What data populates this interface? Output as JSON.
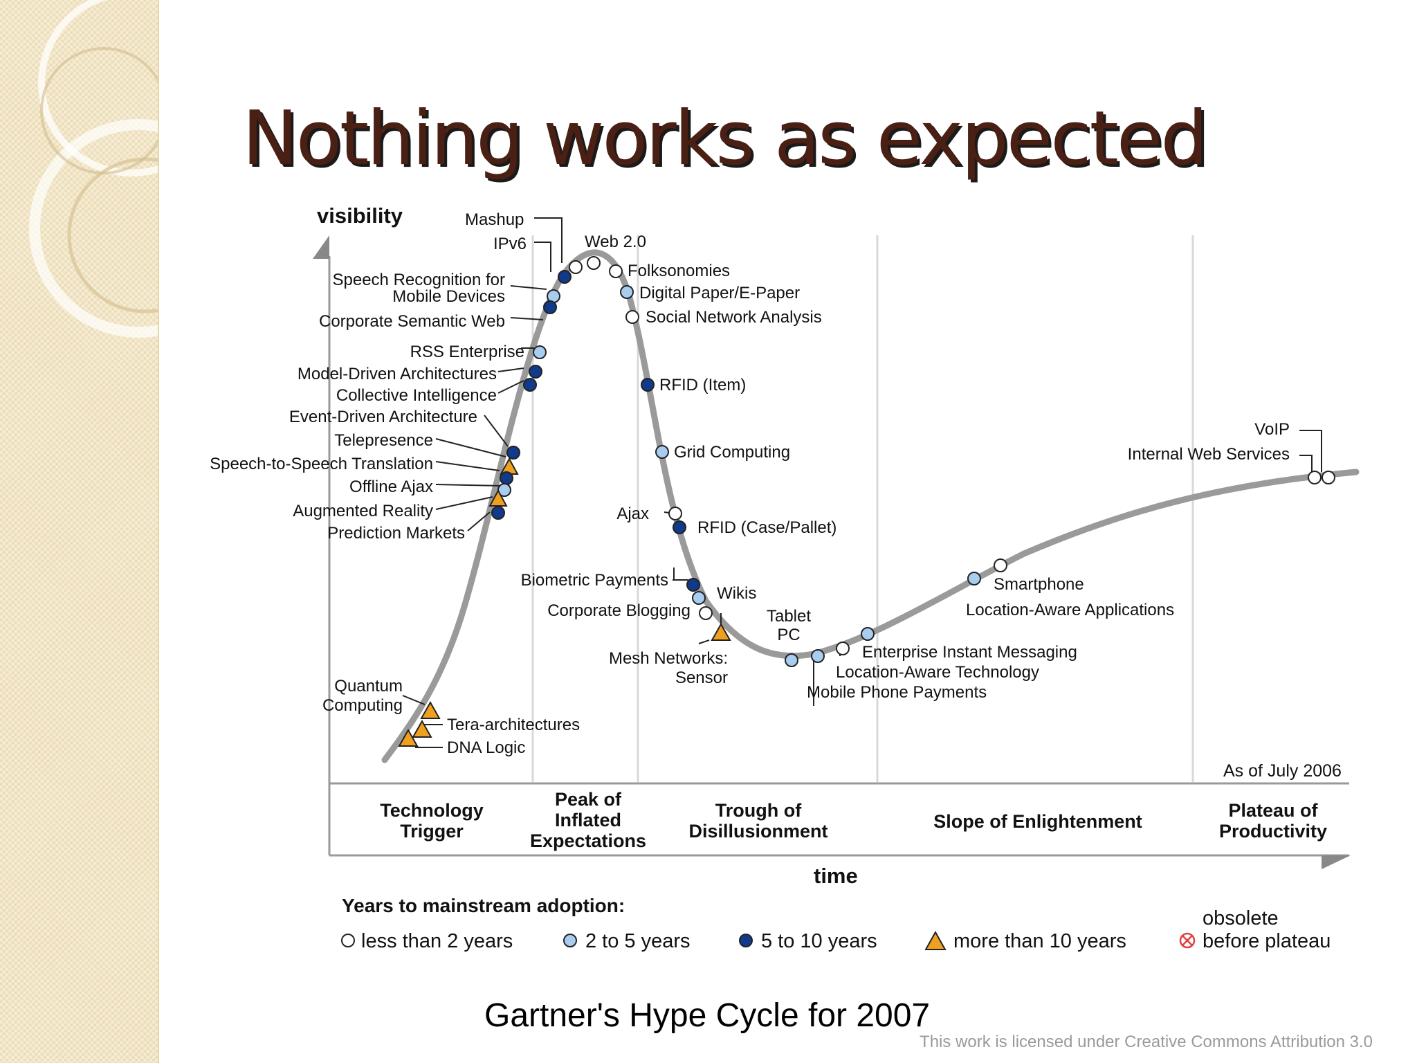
{
  "slide": {
    "title": "Nothing works as expected",
    "caption": "Gartner's Hype Cycle for 2007",
    "license": "This work is licensed under Creative Commons Attribution 3.0"
  },
  "colors": {
    "less_than_2": "#ffffff",
    "two_to_five": "#a9cdef",
    "five_to_ten": "#123a8a",
    "more_than_10": "#f0a020",
    "obsolete": "#e04040",
    "curve": "#9a9a9a",
    "title": "#4a1f14"
  },
  "diagram": {
    "y_label": "visibility",
    "x_label": "time",
    "as_of": "As of July 2006",
    "phases": [
      {
        "lines": [
          "Technology",
          "Trigger"
        ]
      },
      {
        "lines": [
          "Peak of",
          "Inflated",
          "Expectations"
        ]
      },
      {
        "lines": [
          "Trough of",
          "Disillusionment"
        ]
      },
      {
        "lines": [
          "Slope of Enlightenment"
        ]
      },
      {
        "lines": [
          "Plateau of",
          "Productivity"
        ]
      }
    ],
    "technologies": [
      {
        "label": "Mashup",
        "category": "less_than_2"
      },
      {
        "label": "IPv6",
        "category": "five_to_ten"
      },
      {
        "label": "Web 2.0",
        "category": "less_than_2"
      },
      {
        "label": "Folksonomies",
        "category": "less_than_2"
      },
      {
        "label": "Speech Recognition for",
        "category": "two_to_five"
      },
      {
        "label": "Mobile Devices",
        "category": "two_to_five"
      },
      {
        "label": "Digital Paper/E-Paper",
        "category": "two_to_five"
      },
      {
        "label": "Corporate Semantic Web",
        "category": "five_to_ten"
      },
      {
        "label": "Social Network Analysis",
        "category": "less_than_2"
      },
      {
        "label": "RSS Enterprise",
        "category": "two_to_five"
      },
      {
        "label": "Model-Driven Architectures",
        "category": "five_to_ten"
      },
      {
        "label": "RFID (Item)",
        "category": "five_to_ten"
      },
      {
        "label": "Collective Intelligence",
        "category": "five_to_ten"
      },
      {
        "label": "Event-Driven Architecture",
        "category": "five_to_ten"
      },
      {
        "label": "Telepresence",
        "category": "more_than_10"
      },
      {
        "label": "Grid Computing",
        "category": "two_to_five"
      },
      {
        "label": "Speech-to-Speech Translation",
        "category": "five_to_ten"
      },
      {
        "label": "Offline Ajax",
        "category": "two_to_five"
      },
      {
        "label": "Ajax",
        "category": "less_than_2"
      },
      {
        "label": "RFID (Case/Pallet)",
        "category": "five_to_ten"
      },
      {
        "label": "Augmented Reality",
        "category": "more_than_10"
      },
      {
        "label": "Prediction Markets",
        "category": "five_to_ten"
      },
      {
        "label": "Biometric Payments",
        "category": "five_to_ten"
      },
      {
        "label": "Wikis",
        "category": "two_to_five"
      },
      {
        "label": "Corporate Blogging",
        "category": "less_than_2"
      },
      {
        "label": "Tablet",
        "category": "two_to_five"
      },
      {
        "label": "PC",
        "category": "two_to_five"
      },
      {
        "label": "Mesh Networks:",
        "category": "more_than_10"
      },
      {
        "label": "Sensor",
        "category": "more_than_10"
      },
      {
        "label": "Enterprise Instant Messaging",
        "category": "two_to_five"
      },
      {
        "label": "Location-Aware Technology",
        "category": "less_than_2"
      },
      {
        "label": "Mobile Phone Payments",
        "category": "two_to_five"
      },
      {
        "label": "Smartphone",
        "category": "less_than_2"
      },
      {
        "label": "Location-Aware Applications",
        "category": "two_to_five"
      },
      {
        "label": "VoIP",
        "category": "less_than_2"
      },
      {
        "label": "Internal Web Services",
        "category": "less_than_2"
      },
      {
        "label": "Quantum",
        "category": "more_than_10"
      },
      {
        "label": "Computing",
        "category": "more_than_10"
      },
      {
        "label": "Tera-architectures",
        "category": "more_than_10"
      },
      {
        "label": "DNA Logic",
        "category": "more_than_10"
      }
    ],
    "legend": {
      "title": "Years to mainstream adoption:",
      "items": [
        {
          "shape": "circle-white",
          "label": "less than 2 years"
        },
        {
          "shape": "circle-light",
          "label": "2 to 5 years"
        },
        {
          "shape": "circle-dark",
          "label": "5 to 10 years"
        },
        {
          "shape": "triangle",
          "label": "more than 10 years"
        },
        {
          "shape": "circle-x",
          "label_top": "obsolete",
          "label": "before plateau"
        }
      ]
    }
  }
}
